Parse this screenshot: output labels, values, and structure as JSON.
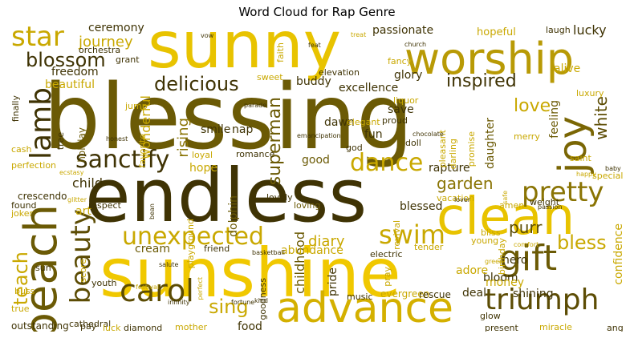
{
  "title": "Word Cloud for Rap Genre",
  "chart_data": {
    "type": "wordcloud",
    "title": "Word Cloud for Rap Genre",
    "words": [
      {
        "text": "blessing",
        "size": 8,
        "color": "#6b5a05"
      },
      {
        "text": "endless",
        "size": 6,
        "color": "#3f3304"
      },
      {
        "text": "sunshine",
        "size": 6,
        "color": "#f0c800"
      },
      {
        "text": "sunny",
        "size": 6,
        "color": "#e8c300"
      },
      {
        "text": "worship",
        "size": 4,
        "color": "#b89a05"
      },
      {
        "text": "beach",
        "size": 4,
        "color": "#6b5a05"
      },
      {
        "text": "clean",
        "size": 4,
        "color": "#e8c300"
      },
      {
        "text": "advance",
        "size": 4,
        "color": "#d4b000"
      },
      {
        "text": "joy",
        "size": 4,
        "color": "#7a6604"
      },
      {
        "text": "gift",
        "size": 3,
        "color": "#6b5a05"
      },
      {
        "text": "triumph",
        "size": 3,
        "color": "#5c4c04"
      },
      {
        "text": "carol",
        "size": 3,
        "color": "#5c4c04"
      },
      {
        "text": "beauty",
        "size": 3,
        "color": "#5c4c04"
      },
      {
        "text": "pretty",
        "size": 3,
        "color": "#8a7404"
      },
      {
        "text": "swim",
        "size": 3,
        "color": "#c9a800"
      },
      {
        "text": "unexpected",
        "size": 3,
        "color": "#c9a800"
      },
      {
        "text": "dance",
        "size": 3,
        "color": "#c9a800"
      },
      {
        "text": "sanctify",
        "size": 3,
        "color": "#3f3304"
      },
      {
        "text": "lamb",
        "size": 3,
        "color": "#3f3304"
      },
      {
        "text": "star",
        "size": 3,
        "color": "#c9a800"
      },
      {
        "text": "delicious",
        "size": 2,
        "color": "#3f3304"
      },
      {
        "text": "blossom",
        "size": 2,
        "color": "#3f3304"
      },
      {
        "text": "inspired",
        "size": 2,
        "color": "#3f3304"
      },
      {
        "text": "superman",
        "size": 2,
        "color": "#6b5a05"
      },
      {
        "text": "love",
        "size": 2,
        "color": "#c9a800"
      },
      {
        "text": "bless",
        "size": 2,
        "color": "#c9a800"
      },
      {
        "text": "sing",
        "size": 2,
        "color": "#c9a800"
      },
      {
        "text": "teach",
        "size": 2,
        "color": "#c9a800"
      },
      {
        "text": "garden",
        "size": 2,
        "color": "#8a7404"
      },
      {
        "text": "white",
        "size": 2,
        "color": "#5c4c04"
      },
      {
        "text": "journey",
        "size": 2,
        "color": "#c9a800"
      },
      {
        "text": "purr",
        "size": 2,
        "color": "#5c4c04"
      },
      {
        "text": "rising",
        "size": 2,
        "color": "#8a7404"
      },
      {
        "text": "childhood",
        "size": 2,
        "color": "#6b5a05"
      },
      {
        "text": "hopeful",
        "size": 1,
        "color": "#c9a800"
      },
      {
        "text": "lucky",
        "size": 1,
        "color": "#3f3304"
      },
      {
        "text": "passionate",
        "size": 1,
        "color": "#3f3304"
      },
      {
        "text": "ceremony",
        "size": 1,
        "color": "#3f3304"
      },
      {
        "text": "freedom",
        "size": 1,
        "color": "#3f3304"
      },
      {
        "text": "beautiful",
        "size": 1,
        "color": "#c9a800"
      },
      {
        "text": "wonderful",
        "size": 1,
        "color": "#c9a800"
      },
      {
        "text": "buddy",
        "size": 1,
        "color": "#3f3304"
      },
      {
        "text": "glory",
        "size": 1,
        "color": "#3f3304"
      },
      {
        "text": "excellence",
        "size": 1,
        "color": "#3f3304"
      },
      {
        "text": "alive",
        "size": 1,
        "color": "#c9a800"
      },
      {
        "text": "smile",
        "size": 1,
        "color": "#3f3304"
      },
      {
        "text": "nap",
        "size": 1,
        "color": "#3f3304"
      },
      {
        "text": "dawn",
        "size": 1,
        "color": "#3f3304"
      },
      {
        "text": "save",
        "size": 1,
        "color": "#3f3304"
      },
      {
        "text": "fun",
        "size": 1,
        "color": "#3f3304"
      },
      {
        "text": "daughter",
        "size": 1,
        "color": "#6b5a05"
      },
      {
        "text": "feeling",
        "size": 1,
        "color": "#6b5a05"
      },
      {
        "text": "child",
        "size": 1,
        "color": "#3f3304"
      },
      {
        "text": "hope",
        "size": 1,
        "color": "#c9a800"
      },
      {
        "text": "rapture",
        "size": 1,
        "color": "#3f3304"
      },
      {
        "text": "diary",
        "size": 1,
        "color": "#c9a800"
      },
      {
        "text": "blessed",
        "size": 1,
        "color": "#3f3304"
      },
      {
        "text": "crescendo",
        "size": 1,
        "color": "#3f3304"
      },
      {
        "text": "art",
        "size": 1,
        "color": "#c9a800"
      },
      {
        "text": "cream",
        "size": 1,
        "color": "#6b5a05"
      },
      {
        "text": "dolphin",
        "size": 1,
        "color": "#6b5a05"
      },
      {
        "text": "good",
        "size": 1,
        "color": "#6b5a05"
      },
      {
        "text": "hero",
        "size": 1,
        "color": "#3f3304"
      },
      {
        "text": "bloom",
        "size": 1,
        "color": "#3f3304"
      },
      {
        "text": "adore",
        "size": 1,
        "color": "#c9a800"
      },
      {
        "text": "confidence",
        "size": 1,
        "color": "#c9a800"
      },
      {
        "text": "money",
        "size": 1,
        "color": "#c9a800"
      },
      {
        "text": "shining",
        "size": 1,
        "color": "#3f3304"
      },
      {
        "text": "deal",
        "size": 1,
        "color": "#3f3304"
      },
      {
        "text": "pride",
        "size": 1,
        "color": "#3f3304"
      },
      {
        "text": "abundance",
        "size": 1,
        "color": "#c9a800"
      },
      {
        "text": "evergreen",
        "size": 1,
        "color": "#c9a800"
      },
      {
        "text": "rescue",
        "size": 1,
        "color": "#3f3304"
      },
      {
        "text": "outstanding",
        "size": 1,
        "color": "#3f3304"
      },
      {
        "text": "food",
        "size": 1,
        "color": "#3f3304"
      },
      {
        "text": "mother",
        "size": 1,
        "color": "#c9a800"
      },
      {
        "text": "diamond",
        "size": 1,
        "color": "#3f3304"
      },
      {
        "text": "cathedral",
        "size": 1,
        "color": "#3f3304"
      },
      {
        "text": "luck",
        "size": 1,
        "color": "#c9a800"
      },
      {
        "text": "pay",
        "size": 1,
        "color": "#3f3304"
      },
      {
        "text": "youth",
        "size": 1,
        "color": "#3f3304"
      },
      {
        "text": "holiday",
        "size": 1,
        "color": "#6b5a05"
      },
      {
        "text": "loving",
        "size": 1,
        "color": "#6b5a05"
      },
      {
        "text": "friend",
        "size": 1,
        "color": "#3f3304"
      },
      {
        "text": "respect",
        "size": 1,
        "color": "#3f3304"
      },
      {
        "text": "present",
        "size": 1,
        "color": "#3f3304"
      },
      {
        "text": "angel",
        "size": 1,
        "color": "#3f3304"
      },
      {
        "text": "miracle",
        "size": 1,
        "color": "#c9a800"
      },
      {
        "text": "glow",
        "size": 1,
        "color": "#3f3304"
      },
      {
        "text": "music",
        "size": 1,
        "color": "#3f3304"
      },
      {
        "text": "electric",
        "size": 1,
        "color": "#3f3304"
      },
      {
        "text": "amen",
        "size": 1,
        "color": "#c9a800"
      },
      {
        "text": "grant",
        "size": 1,
        "color": "#3f3304"
      },
      {
        "text": "orchestra",
        "size": 1,
        "color": "#3f3304"
      },
      {
        "text": "sweet",
        "size": 1,
        "color": "#c9a800"
      },
      {
        "text": "elevation",
        "size": 1,
        "color": "#3f3304"
      },
      {
        "text": "elegant",
        "size": 1,
        "color": "#c9a800"
      },
      {
        "text": "proud",
        "size": 1,
        "color": "#3f3304"
      },
      {
        "text": "liquor",
        "size": 1,
        "color": "#c9a800"
      },
      {
        "text": "luxury",
        "size": 1,
        "color": "#c9a800"
      },
      {
        "text": "merry",
        "size": 1,
        "color": "#c9a800"
      },
      {
        "text": "saint",
        "size": 1,
        "color": "#c9a800"
      },
      {
        "text": "special",
        "size": 1,
        "color": "#c9a800"
      },
      {
        "text": "lovely",
        "size": 1,
        "color": "#3f3304"
      },
      {
        "text": "romance",
        "size": 1,
        "color": "#3f3304"
      },
      {
        "text": "loyal",
        "size": 1,
        "color": "#c9a800"
      },
      {
        "text": "vacation",
        "size": 1,
        "color": "#c9a800"
      },
      {
        "text": "perfection",
        "size": 1,
        "color": "#c9a800"
      },
      {
        "text": "favorite",
        "size": 1,
        "color": "#c9a800"
      },
      {
        "text": "doll",
        "size": 1,
        "color": "#3f3304"
      },
      {
        "text": "god",
        "size": 1,
        "color": "#3f3304"
      },
      {
        "text": "fancy",
        "size": 1,
        "color": "#c9a800"
      },
      {
        "text": "darling",
        "size": 1,
        "color": "#c9a800"
      },
      {
        "text": "weight",
        "size": 1,
        "color": "#3f3304"
      },
      {
        "text": "laugh",
        "size": 1,
        "color": "#3f3304"
      },
      {
        "text": "faith",
        "size": 1,
        "color": "#c9a800"
      },
      {
        "text": "tree",
        "size": 1,
        "color": "#3f3304"
      },
      {
        "text": "finally",
        "size": 1,
        "color": "#3f3304"
      },
      {
        "text": "jump",
        "size": 1,
        "color": "#c9a800"
      },
      {
        "text": "cash",
        "size": 1,
        "color": "#c9a800"
      },
      {
        "text": "playground",
        "size": 1,
        "color": "#c9a800"
      },
      {
        "text": "birthday",
        "size": 1,
        "color": "#c9a800"
      },
      {
        "text": "promise",
        "size": 1,
        "color": "#c9a800"
      },
      {
        "text": "pleasant",
        "size": 1,
        "color": "#c9a800"
      },
      {
        "text": "revival",
        "size": 1,
        "color": "#c9a800"
      },
      {
        "text": "bliss",
        "size": 1,
        "color": "#c9a800"
      },
      {
        "text": "young",
        "size": 1,
        "color": "#c9a800"
      },
      {
        "text": "score",
        "size": 1,
        "color": "#c9a800"
      },
      {
        "text": "buss",
        "size": 1,
        "color": "#c9a800"
      },
      {
        "text": "true",
        "size": 1,
        "color": "#c9a800"
      },
      {
        "text": "sun",
        "size": 1,
        "color": "#3f3304"
      },
      {
        "text": "joker",
        "size": 1,
        "color": "#c9a800"
      },
      {
        "text": "found",
        "size": 1,
        "color": "#3f3304"
      },
      {
        "text": "goodness",
        "size": 1,
        "color": "#3f3304"
      },
      {
        "text": "pray",
        "size": 1,
        "color": "#c9a800"
      },
      {
        "text": "tender",
        "size": 1,
        "color": "#c9a800"
      },
      {
        "text": "honest",
        "size": 1,
        "color": "#3f3304"
      },
      {
        "text": "basketball",
        "size": 1,
        "color": "#3f3304"
      },
      {
        "text": "festival",
        "size": 1,
        "color": "#c9a800"
      },
      {
        "text": "salute",
        "size": 1,
        "color": "#3f3304"
      },
      {
        "text": "infinity",
        "size": 1,
        "color": "#3f3304"
      },
      {
        "text": "fortune",
        "size": 1,
        "color": "#3f3304"
      },
      {
        "text": "kind",
        "size": 1,
        "color": "#3f3304"
      },
      {
        "text": "safe",
        "size": 1,
        "color": "#c9a800"
      },
      {
        "text": "lover",
        "size": 1,
        "color": "#3f3304"
      },
      {
        "text": "passion",
        "size": 1,
        "color": "#3f3304"
      },
      {
        "text": "church",
        "size": 1,
        "color": "#3f3304"
      },
      {
        "text": "feat",
        "size": 1,
        "color": "#3f3304"
      },
      {
        "text": "treat",
        "size": 1,
        "color": "#c9a800"
      },
      {
        "text": "vow",
        "size": 1,
        "color": "#3f3304"
      },
      {
        "text": "parade",
        "size": 1,
        "color": "#3f3304"
      },
      {
        "text": "emancipation",
        "size": 1,
        "color": "#3f3304"
      },
      {
        "text": "chocolate",
        "size": 1,
        "color": "#3f3304"
      },
      {
        "text": "glitter",
        "size": 1,
        "color": "#c9a800"
      },
      {
        "text": "ecstasy",
        "size": 1,
        "color": "#c9a800"
      },
      {
        "text": "happy",
        "size": 1,
        "color": "#c9a800"
      },
      {
        "text": "baby",
        "size": 1,
        "color": "#3f3304"
      },
      {
        "text": "bean",
        "size": 1,
        "color": "#3f3304"
      },
      {
        "text": "green",
        "size": 1,
        "color": "#c9a800"
      },
      {
        "text": "comfort",
        "size": 1,
        "color": "#c9a800"
      },
      {
        "text": "perfect",
        "size": 1,
        "color": "#c9a800"
      }
    ]
  }
}
